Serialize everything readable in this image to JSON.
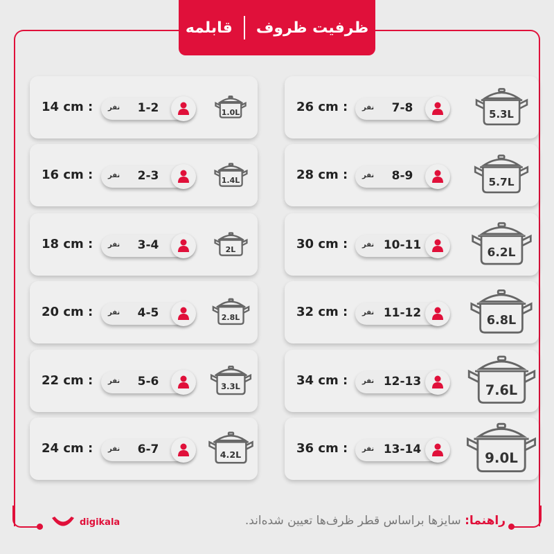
{
  "header": {
    "title": "ظرفیت ظروف",
    "category": "قابلمه"
  },
  "unit_people": "نفر",
  "colors": {
    "accent": "#e0103a"
  },
  "left_column": [
    {
      "diameter": "14 cm :",
      "people": "1-2",
      "volume": "1.0L"
    },
    {
      "diameter": "16 cm :",
      "people": "2-3",
      "volume": "1.4L"
    },
    {
      "diameter": "18 cm :",
      "people": "3-4",
      "volume": "2L"
    },
    {
      "diameter": "20 cm :",
      "people": "4-5",
      "volume": "2.8L"
    },
    {
      "diameter": "22 cm :",
      "people": "5-6",
      "volume": "3.3L"
    },
    {
      "diameter": "24 cm :",
      "people": "6-7",
      "volume": "4.2L"
    }
  ],
  "right_column": [
    {
      "diameter": "26 cm :",
      "people": "7-8",
      "volume": "5.3L"
    },
    {
      "diameter": "28 cm :",
      "people": "8-9",
      "volume": "5.7L"
    },
    {
      "diameter": "30 cm :",
      "people": "10-11",
      "volume": "6.2L"
    },
    {
      "diameter": "32 cm :",
      "people": "11-12",
      "volume": "6.8L"
    },
    {
      "diameter": "34 cm :",
      "people": "12-13",
      "volume": "7.6L"
    },
    {
      "diameter": "36 cm :",
      "people": "13-14",
      "volume": "9.0L"
    }
  ],
  "footer": {
    "guide_label": "راهنما:",
    "guide_text": " سایزها براساس قطر ظرف‌ها تعیین شده‌اند.",
    "logo": "digikala"
  }
}
